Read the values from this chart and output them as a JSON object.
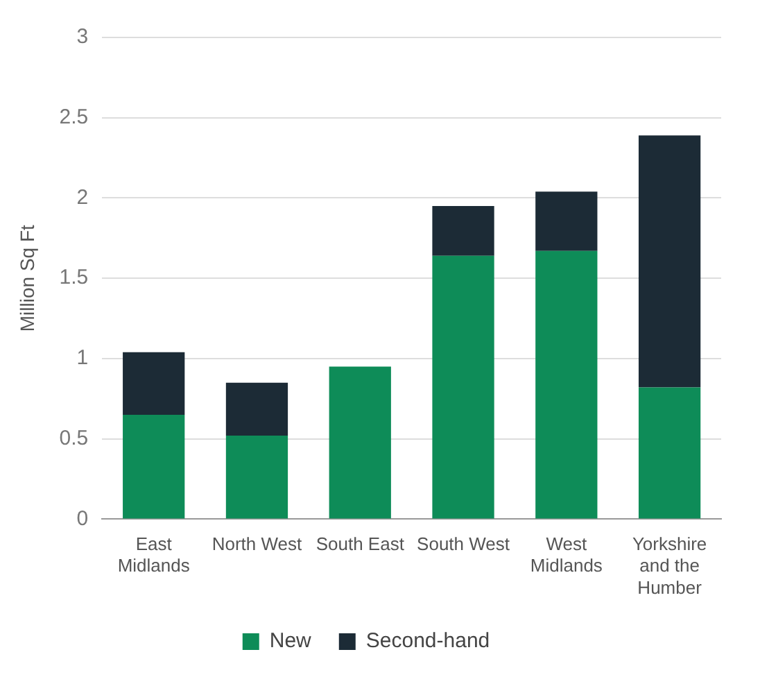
{
  "chart_data": {
    "type": "bar",
    "stacked": true,
    "ylabel": "Million Sq Ft",
    "categories": [
      "East Midlands",
      "North West",
      "South East",
      "South West",
      "West Midlands",
      "Yorkshire and the Humber"
    ],
    "series": [
      {
        "name": "New",
        "color": "#0e8c58",
        "values": [
          0.65,
          0.52,
          0.95,
          1.64,
          1.67,
          0.82
        ]
      },
      {
        "name": "Second-hand",
        "color": "#1c2b36",
        "values": [
          0.39,
          0.33,
          0,
          0.31,
          0.37,
          1.57
        ]
      }
    ],
    "ylim": [
      0,
      3
    ],
    "yticks": [
      0,
      0.5,
      1,
      1.5,
      2,
      2.5,
      3
    ],
    "grid": "y",
    "legend": "bottom"
  }
}
